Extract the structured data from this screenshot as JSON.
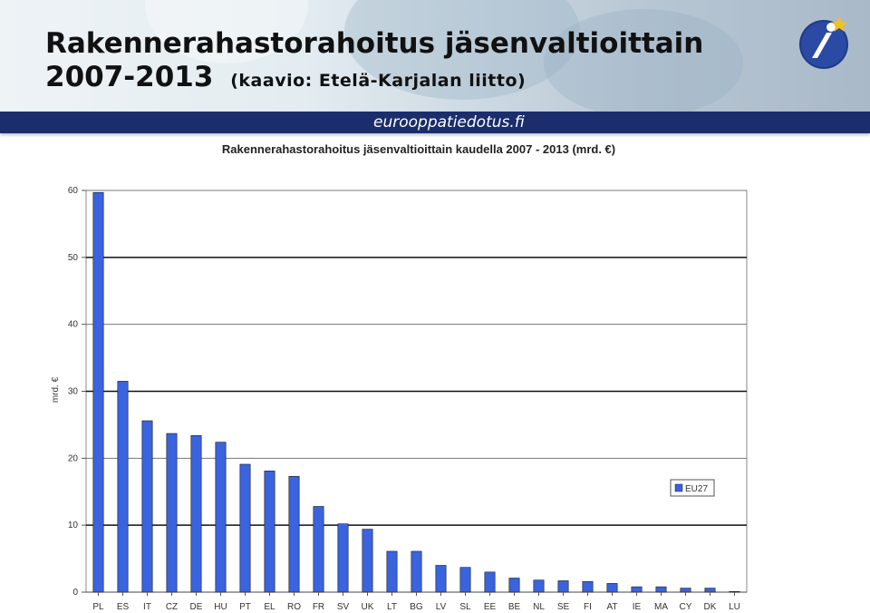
{
  "slide": {
    "title_line1": "Rakennerahastorahoitus jäsenvaltioittain",
    "title_years": "2007-2013",
    "title_source": "(kaavio: Etelä-Karjalan liitto)",
    "site_name": "eurooppatiedotus.fi",
    "logo_icon": "info-star-logo-icon",
    "colors": {
      "bar": "#3a63e0",
      "site_bar": "#1b2d6b",
      "logo_blue": "#1e3a8a",
      "logo_star": "#f2c318"
    }
  },
  "chart_data": {
    "type": "bar",
    "title": "Rakennerahastorahoitus jäsenvaltioittain kaudella 2007 - 2013 (mrd. €)",
    "xlabel": "",
    "ylabel": "mrd. €",
    "ylim": [
      0,
      60
    ],
    "yticks": [
      0,
      10,
      20,
      30,
      40,
      50,
      60
    ],
    "grid": true,
    "legend_position": "right",
    "categories": [
      "PL",
      "ES",
      "IT",
      "CZ",
      "DE",
      "HU",
      "PT",
      "EL",
      "RO",
      "FR",
      "SV",
      "UK",
      "LT",
      "BG",
      "LV",
      "SL",
      "EE",
      "BE",
      "NL",
      "SE",
      "FI",
      "AT",
      "IE",
      "MA",
      "CY",
      "DK",
      "LU"
    ],
    "series": [
      {
        "name": "EU27",
        "color": "#3a63e0",
        "values": [
          59.7,
          31.5,
          25.6,
          23.7,
          23.4,
          22.4,
          19.1,
          18.1,
          17.3,
          12.8,
          10.2,
          9.4,
          6.1,
          6.1,
          4.0,
          3.7,
          3.0,
          2.1,
          1.8,
          1.7,
          1.6,
          1.3,
          0.8,
          0.8,
          0.6,
          0.6,
          0.1
        ]
      }
    ]
  }
}
